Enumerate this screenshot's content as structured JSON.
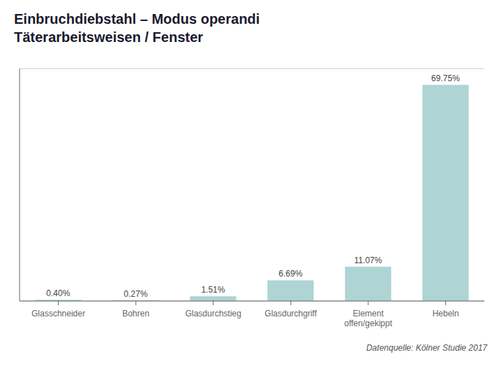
{
  "chart_data": {
    "type": "bar",
    "title": "Einbruchdiebstahl – Modus operandi",
    "subtitle": "Täterarbeitsweisen / Fenster",
    "categories": [
      "Glasschneider",
      "Bohren",
      "Glasdurchstieg",
      "Glasdurchgriff",
      "Element\noffen/gekippt",
      "Hebeln"
    ],
    "values": [
      0.4,
      0.27,
      1.51,
      6.69,
      11.07,
      69.75
    ],
    "value_labels": [
      "0.40%",
      "0.27%",
      "1.51%",
      "6.69%",
      "11.07%",
      "69.75%"
    ],
    "data_labels": true,
    "color": "#aed4d4",
    "ylim": [
      0,
      75
    ],
    "yticks": [
      0,
      10,
      20,
      30,
      40,
      50,
      60,
      70
    ],
    "grid": true,
    "tick_labels": "x",
    "annotations": [
      "Datenquelle: Kölner Studie 2017"
    ]
  }
}
